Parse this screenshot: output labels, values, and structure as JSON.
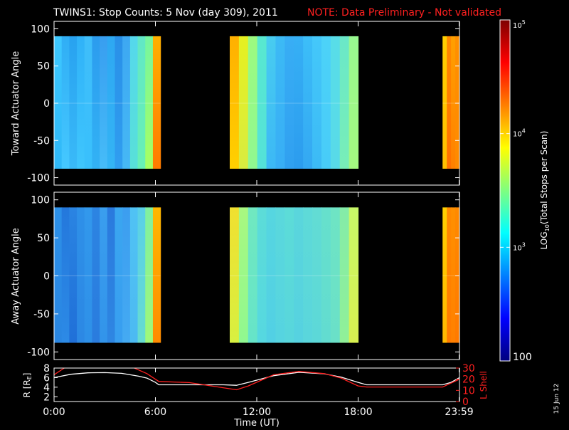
{
  "header": {
    "title": "TWINS1: Stop Counts:  5 Nov (day 309), 2011",
    "note": "NOTE: Data Preliminary - Not validated",
    "note_color": "#ff2020"
  },
  "date_stamp": "15 Jun 12",
  "colorbar": {
    "label_prefix": "LOG",
    "label_sub": "10",
    "label_suffix": "(Total Stops per Scan)",
    "tick_labels": [
      {
        "base": "10",
        "exp": "5",
        "value": 100000
      },
      {
        "base": "10",
        "exp": "4",
        "value": 10000
      },
      {
        "base": "10",
        "exp": "3",
        "value": 1000
      },
      {
        "base": "100",
        "exp": "",
        "value": 100
      }
    ],
    "colors": [
      "#00007f",
      "#0000ff",
      "#007fff",
      "#00ffff",
      "#7fff7f",
      "#ffff00",
      "#ff7f00",
      "#ff0000",
      "#7f0000"
    ]
  },
  "chart_data": [
    {
      "type": "heatmap",
      "panel": "toward",
      "ylabel": "Toward Actuator Angle",
      "ylim": [
        -110,
        110
      ],
      "y_ticks": [
        100,
        50,
        0,
        -50,
        -100
      ],
      "xlim": [
        0,
        24
      ],
      "data_y_range": [
        -88,
        90
      ],
      "zscale": "log",
      "zlim": [
        100,
        100000
      ],
      "segments": [
        {
          "t_start": 0.0,
          "t_end": 6.3,
          "columns": [
            [
              "#3ec8ff",
              "#2fb8f8"
            ],
            [
              "#30aef5",
              "#45c8ff"
            ],
            [
              "#28a2f0",
              "#3abaf8"
            ],
            [
              "#30b2f8",
              "#3fc6fd"
            ],
            [
              "#3fbefa",
              "#39c0fc"
            ],
            [
              "#2c9cee",
              "#32b2f5"
            ],
            [
              "#389ef0",
              "#46bcf8"
            ],
            [
              "#2ea8f2",
              "#34b4f5"
            ],
            [
              "#2990e8",
              "#309ef0"
            ],
            [
              "#3da8f2",
              "#46b8f5"
            ],
            [
              "#55d8ec",
              "#58e0d8"
            ],
            [
              "#62e8c6",
              "#68f0b5"
            ],
            [
              "#76f6a0",
              "#a8ff60"
            ],
            [
              "#ffb000",
              "#ff7a00"
            ]
          ]
        },
        {
          "t_start": 10.4,
          "t_end": 18.0,
          "columns": [
            [
              "#ffb000",
              "#ffd000"
            ],
            [
              "#e6f020",
              "#d8ec40"
            ],
            [
              "#9cfa80",
              "#90f890"
            ],
            [
              "#58e8d0",
              "#54e2d8"
            ],
            [
              "#48ccf0",
              "#3cb8f5"
            ],
            [
              "#3cbaf5",
              "#38aef5"
            ],
            [
              "#38aef5",
              "#30a0f0"
            ],
            [
              "#36b0f5",
              "#2c9cee"
            ],
            [
              "#3cbef8",
              "#34a8f2"
            ],
            [
              "#44c8fa",
              "#3cbaf5"
            ],
            [
              "#4cd2f8",
              "#48ccf8"
            ],
            [
              "#58dde8",
              "#58dae8"
            ],
            [
              "#6ae8c8",
              "#78eeb8"
            ],
            [
              "#98f890",
              "#a4f880"
            ]
          ]
        },
        {
          "t_start": 23.0,
          "t_end": 24.0,
          "columns": [
            [
              "#ffd000",
              "#ffc000"
            ],
            [
              "#ff8a00",
              "#ff7000"
            ],
            [
              "#ffa000",
              "#ff8000"
            ],
            [
              "#ff9000",
              "#ff8a00"
            ]
          ]
        }
      ]
    },
    {
      "type": "heatmap",
      "panel": "away",
      "ylabel": "Away Actuator Angle",
      "ylim": [
        -110,
        110
      ],
      "y_ticks": [
        100,
        50,
        0,
        -50,
        -100
      ],
      "xlim": [
        0,
        24
      ],
      "data_y_range": [
        -88,
        90
      ],
      "zscale": "log",
      "zlim": [
        100,
        100000
      ],
      "segments": [
        {
          "t_start": 0.0,
          "t_end": 6.3,
          "columns": [
            [
              "#2c90e8",
              "#2a86e2"
            ],
            [
              "#2478dc",
              "#2c8ae6"
            ],
            [
              "#2a84e2",
              "#2070d8"
            ],
            [
              "#2e90e8",
              "#2c88e4"
            ],
            [
              "#3298ec",
              "#2e90e8"
            ],
            [
              "#2c84e2",
              "#2a7cde"
            ],
            [
              "#3a9eee",
              "#3294ea"
            ],
            [
              "#2a7ade",
              "#2e86e2"
            ],
            [
              "#3aa6f0",
              "#389ef0"
            ],
            [
              "#3c9ef0",
              "#44aaf2"
            ],
            [
              "#50c2f4",
              "#4cbaf2"
            ],
            [
              "#5ad0e8",
              "#66dcd0"
            ],
            [
              "#80f0a0",
              "#a0f878"
            ],
            [
              "#ffb800",
              "#ff8a00"
            ]
          ]
        },
        {
          "t_start": 10.4,
          "t_end": 18.0,
          "columns": [
            [
              "#f0e030",
              "#d8f040"
            ],
            [
              "#a8f880",
              "#90f890"
            ],
            [
              "#70e8c0",
              "#66e4c8"
            ],
            [
              "#5cdcd8",
              "#56d8e0"
            ],
            [
              "#56d6e0",
              "#52d0e4"
            ],
            [
              "#5ad8dc",
              "#56d4e0"
            ],
            [
              "#5cdcd8",
              "#58d6dc"
            ],
            [
              "#5ad6dc",
              "#56d2e0"
            ],
            [
              "#5edad8",
              "#5ad6dc"
            ],
            [
              "#62dcd4",
              "#5cd8d8"
            ],
            [
              "#66e0cc",
              "#62dcd0"
            ],
            [
              "#6ee4c4",
              "#6ae0c8"
            ],
            [
              "#84eca8",
              "#90f098"
            ],
            [
              "#c8f868",
              "#d8f050"
            ]
          ]
        },
        {
          "t_start": 23.0,
          "t_end": 24.0,
          "columns": [
            [
              "#ffd000",
              "#ffb800"
            ],
            [
              "#ff8a00",
              "#ff7a00"
            ],
            [
              "#ff9000",
              "#ff8000"
            ],
            [
              "#ff8a00",
              "#ff7a00"
            ]
          ]
        }
      ]
    },
    {
      "type": "line",
      "panel": "orbit",
      "ylabel_left": "R [R",
      "ylabel_left_sub": "E",
      "ylabel_left_end": "]",
      "ylabel_right": "L Shell",
      "ylim_left": [
        1,
        8
      ],
      "ylim_right": [
        0,
        30
      ],
      "left_ticks": [
        8,
        6,
        4,
        2
      ],
      "right_ticks": [
        30,
        20,
        10,
        0
      ],
      "xlim": [
        0,
        24
      ],
      "x_ticks": [
        {
          "t": 0,
          "label": "0:00"
        },
        {
          "t": 6,
          "label": "6:00"
        },
        {
          "t": 12,
          "label": "12:00"
        },
        {
          "t": 18,
          "label": "18:00"
        },
        {
          "t": 23.98,
          "label": "23:59"
        }
      ],
      "xlabel": "Time (UT)",
      "series": [
        {
          "axis": "left",
          "color": "#ffffff",
          "x": [
            0,
            1,
            2,
            3,
            4,
            5,
            5.5,
            6,
            6.2,
            8,
            10,
            10.8,
            11.5,
            13,
            14.5,
            16,
            17,
            18,
            18.5,
            20,
            22,
            23,
            23.5,
            24
          ],
          "y": [
            6.0,
            6.7,
            7.0,
            7.05,
            6.9,
            6.3,
            5.9,
            5.0,
            4.5,
            4.5,
            4.5,
            4.4,
            5.0,
            6.4,
            7.1,
            6.8,
            6.1,
            5.0,
            4.5,
            4.5,
            4.5,
            4.5,
            5.0,
            6.0
          ]
        },
        {
          "axis": "right",
          "color": "#ff2020",
          "x": [
            0,
            0.6,
            1,
            4.3,
            5.5,
            6.2,
            8,
            10.8,
            11.5,
            13,
            14.5,
            16,
            17,
            18,
            18.5,
            20,
            22,
            23,
            24
          ],
          "y": [
            24,
            30,
            33,
            33,
            25,
            18,
            17,
            10.5,
            14,
            24,
            27,
            25,
            21,
            14,
            13,
            13,
            13,
            13,
            20
          ]
        }
      ]
    }
  ]
}
